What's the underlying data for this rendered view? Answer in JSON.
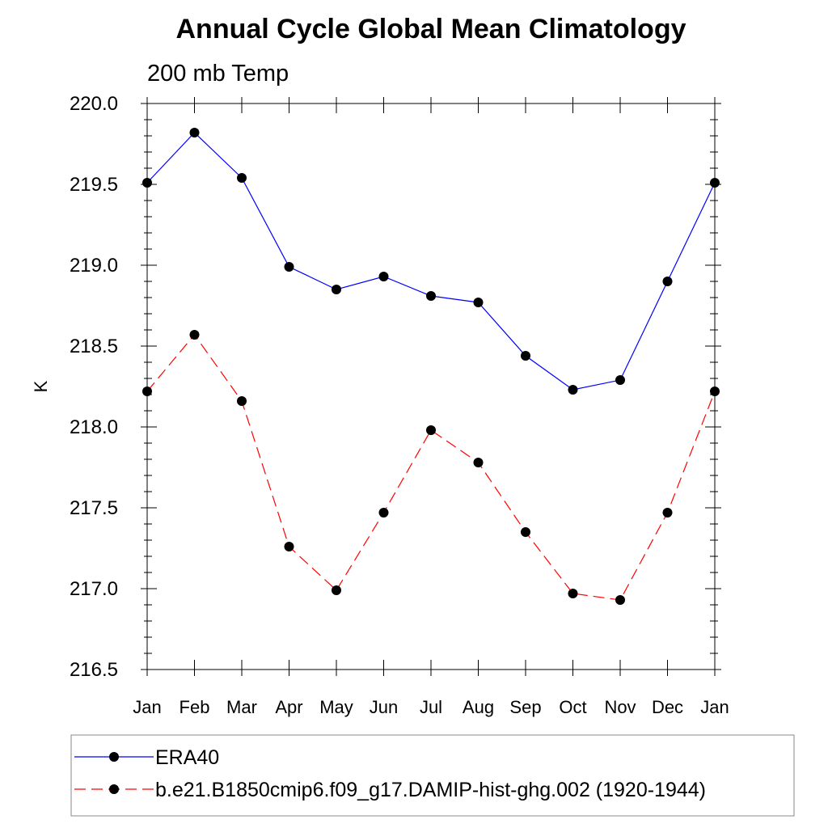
{
  "chart_data": {
    "type": "line",
    "title": "Annual Cycle Global Mean Climatology",
    "subtitle": "200 mb Temp",
    "xlabel": "",
    "ylabel": "K",
    "categories": [
      "Jan",
      "Feb",
      "Mar",
      "Apr",
      "May",
      "Jun",
      "Jul",
      "Aug",
      "Sep",
      "Oct",
      "Nov",
      "Dec",
      "Jan"
    ],
    "ylim": [
      216.5,
      220.0
    ],
    "yticks": [
      "216.5",
      "217.0",
      "217.5",
      "218.0",
      "218.5",
      "219.0",
      "219.5",
      "220.0"
    ],
    "grid": false,
    "legend_position": "bottom",
    "series": [
      {
        "name": "ERA40",
        "color": "#0000ff",
        "dash": "solid",
        "marker": "filled-circle",
        "values": [
          219.51,
          219.82,
          219.54,
          218.99,
          218.85,
          218.93,
          218.81,
          218.77,
          218.44,
          218.23,
          218.29,
          218.9,
          219.51
        ]
      },
      {
        "name": "b.e21.B1850cmip6.f09_g17.DAMIP-hist-ghg.002 (1920-1944)",
        "color": "#ff0000",
        "dash": "dashed",
        "marker": "filled-circle",
        "values": [
          218.22,
          218.57,
          218.16,
          217.26,
          216.99,
          217.47,
          217.98,
          217.78,
          217.35,
          216.97,
          216.93,
          217.47,
          218.22
        ]
      }
    ]
  }
}
